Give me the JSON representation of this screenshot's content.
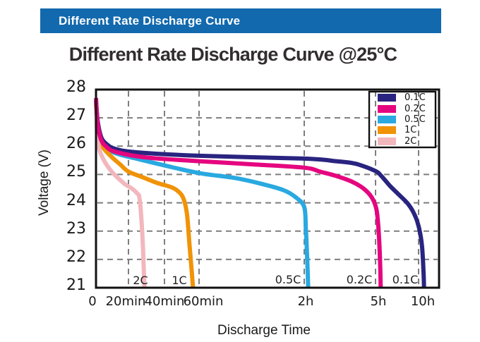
{
  "banner": {
    "title": "Different Rate Discharge Curve"
  },
  "title": "Different Rate Discharge Curve @25°C",
  "colors": {
    "banner_bg": "#1269ae",
    "banner_text": "#ffffff",
    "grid": "#7e7e7e",
    "plot_border": "#111111",
    "title_text": "#322e2f"
  },
  "chart_data": {
    "type": "line",
    "title": "Different Rate Discharge Curve @25°C",
    "xlabel": "Discharge Time",
    "ylabel": "Voltage (V)",
    "ylim": [
      21,
      28
    ],
    "grid": "dashed-gray",
    "legend_position": "top-right-inside",
    "y_ticks": [
      28,
      27,
      26,
      25,
      24,
      23,
      22,
      21
    ],
    "x_ticks": [
      {
        "label": "0",
        "minutes": 0
      },
      {
        "label": "20min",
        "minutes": 20
      },
      {
        "label": "40min",
        "minutes": 40
      },
      {
        "label": "60min",
        "minutes": 60
      },
      {
        "label": "2h",
        "minutes": 120
      },
      {
        "label": "5h",
        "minutes": 300
      },
      {
        "label": "10h",
        "minutes": 600
      }
    ],
    "series": [
      {
        "name": "0.1C",
        "color": "#29247f",
        "annotation": "0.1C",
        "points": [
          [
            0,
            27.6
          ],
          [
            1,
            26.9
          ],
          [
            3,
            26.35
          ],
          [
            6,
            26.1
          ],
          [
            12,
            25.9
          ],
          [
            25,
            25.78
          ],
          [
            60,
            25.66
          ],
          [
            120,
            25.56
          ],
          [
            200,
            25.47
          ],
          [
            250,
            25.38
          ],
          [
            300,
            25.12
          ],
          [
            340,
            24.95
          ],
          [
            400,
            24.6
          ],
          [
            460,
            24.3
          ],
          [
            520,
            24.0
          ],
          [
            560,
            23.7
          ],
          [
            590,
            23.35
          ],
          [
            612,
            22.9
          ],
          [
            625,
            22.4
          ],
          [
            634,
            21.6
          ],
          [
            638,
            21.0
          ]
        ]
      },
      {
        "name": "0.2C",
        "color": "#e5067f",
        "annotation": "0.2C",
        "points": [
          [
            0,
            27.7
          ],
          [
            1,
            26.8
          ],
          [
            3,
            26.25
          ],
          [
            6,
            26.0
          ],
          [
            12,
            25.8
          ],
          [
            30,
            25.6
          ],
          [
            60,
            25.47
          ],
          [
            90,
            25.36
          ],
          [
            120,
            25.24
          ],
          [
            160,
            25.1
          ],
          [
            200,
            24.95
          ],
          [
            240,
            24.75
          ],
          [
            270,
            24.5
          ],
          [
            290,
            24.2
          ],
          [
            305,
            23.8
          ],
          [
            318,
            23.25
          ],
          [
            327,
            22.5
          ],
          [
            333,
            21.7
          ],
          [
            336,
            21.0
          ]
        ]
      },
      {
        "name": "0.5C",
        "color": "#29a9e0",
        "annotation": "0.5C",
        "points": [
          [
            0,
            27.55
          ],
          [
            1,
            26.7
          ],
          [
            3,
            26.2
          ],
          [
            6,
            25.95
          ],
          [
            12,
            25.75
          ],
          [
            25,
            25.55
          ],
          [
            40,
            25.32
          ],
          [
            60,
            25.05
          ],
          [
            80,
            24.88
          ],
          [
            95,
            24.68
          ],
          [
            108,
            24.45
          ],
          [
            115,
            24.2
          ],
          [
            120,
            23.85
          ],
          [
            124,
            23.1
          ],
          [
            127,
            22.2
          ],
          [
            129,
            21.4
          ],
          [
            130,
            21.0
          ]
        ]
      },
      {
        "name": "1C",
        "color": "#f09307",
        "annotation": "1C",
        "points": [
          [
            0,
            27.5
          ],
          [
            1,
            26.6
          ],
          [
            3,
            26.1
          ],
          [
            5,
            25.9
          ],
          [
            10,
            25.6
          ],
          [
            15,
            25.35
          ],
          [
            20,
            25.1
          ],
          [
            28,
            24.9
          ],
          [
            36,
            24.7
          ],
          [
            44,
            24.55
          ],
          [
            48,
            24.4
          ],
          [
            51,
            24.15
          ],
          [
            53,
            23.6
          ],
          [
            54.5,
            22.5
          ],
          [
            56,
            21.4
          ],
          [
            56.5,
            21.0
          ]
        ]
      },
      {
        "name": "2C",
        "color": "#f2b7bd",
        "annotation": "2C",
        "points": [
          [
            0,
            27.4
          ],
          [
            0.7,
            26.4
          ],
          [
            2,
            25.9
          ],
          [
            4,
            25.6
          ],
          [
            7,
            25.3
          ],
          [
            10,
            25.08
          ],
          [
            14,
            24.85
          ],
          [
            18,
            24.65
          ],
          [
            22,
            24.5
          ],
          [
            25,
            24.32
          ],
          [
            26,
            24.2
          ],
          [
            27,
            23.6
          ],
          [
            28,
            22.5
          ],
          [
            28.6,
            21.5
          ],
          [
            28.9,
            21.0
          ]
        ]
      }
    ],
    "curve_annotations": [
      "2C",
      "1C",
      "0.5C",
      "0.2C",
      "0.1C"
    ]
  }
}
